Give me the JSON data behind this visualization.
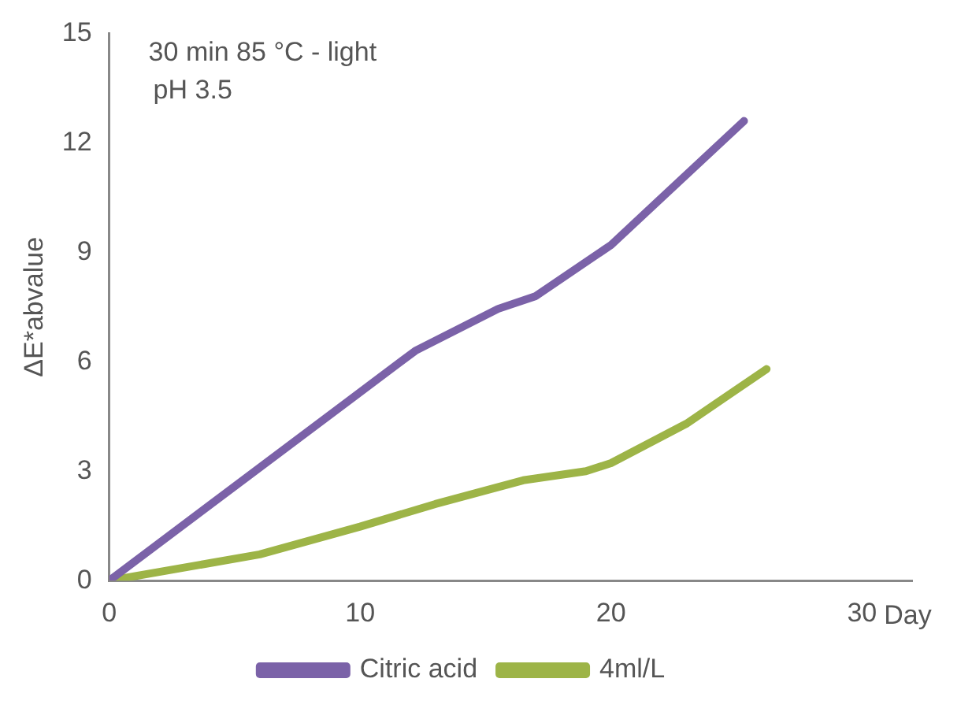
{
  "chart_data": {
    "type": "line",
    "xlabel": "Day",
    "ylabel": "ΔE*abvalue",
    "annotations": [
      "30 min 85 °C - light",
      "pH 3.5"
    ],
    "xlim": [
      0,
      32
    ],
    "xticks": [
      0,
      10,
      20,
      30
    ],
    "ylim": [
      0,
      15
    ],
    "yticks": [
      0,
      3,
      6,
      9,
      12,
      15
    ],
    "grid": false,
    "legend": "bottom",
    "marker": "none",
    "line_style": "solid",
    "series": [
      {
        "name": "Citric acid",
        "color": "#7b62a8",
        "x": [
          0,
          12.2,
          15.5,
          17,
          20,
          25.3
        ],
        "values": [
          0,
          6.3,
          7.45,
          7.8,
          9.2,
          12.6
        ]
      },
      {
        "name": "4ml/L",
        "color": "#9db447",
        "x": [
          0,
          6,
          10,
          13,
          16.5,
          19,
          20,
          23,
          26.2
        ],
        "values": [
          0,
          0.72,
          1.48,
          2.1,
          2.75,
          3.0,
          3.22,
          4.3,
          5.8
        ]
      }
    ]
  }
}
